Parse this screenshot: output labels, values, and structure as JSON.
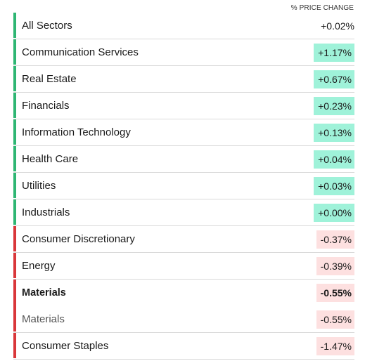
{
  "header": {
    "column_label": "% PRICE CHANGE"
  },
  "colors": {
    "positive_bar": "#2eb673",
    "negative_bar": "#d9373a",
    "positive_fill": "#9ff2d9",
    "negative_fill": "#fde0e0"
  },
  "sectors": [
    {
      "name": "All Sectors",
      "change": "+0.02%",
      "direction": "positive",
      "highlight": false,
      "bold": false,
      "muted": false
    },
    {
      "name": "Communication Services",
      "change": "+1.17%",
      "direction": "positive",
      "highlight": true,
      "bold": false,
      "muted": false
    },
    {
      "name": "Real Estate",
      "change": "+0.67%",
      "direction": "positive",
      "highlight": true,
      "bold": false,
      "muted": false
    },
    {
      "name": "Financials",
      "change": "+0.23%",
      "direction": "positive",
      "highlight": true,
      "bold": false,
      "muted": false
    },
    {
      "name": "Information Technology",
      "change": "+0.13%",
      "direction": "positive",
      "highlight": true,
      "bold": false,
      "muted": false
    },
    {
      "name": "Health Care",
      "change": "+0.04%",
      "direction": "positive",
      "highlight": true,
      "bold": false,
      "muted": false
    },
    {
      "name": "Utilities",
      "change": "+0.03%",
      "direction": "positive",
      "highlight": true,
      "bold": false,
      "muted": false
    },
    {
      "name": "Industrials",
      "change": "+0.00%",
      "direction": "positive",
      "highlight": true,
      "bold": false,
      "muted": false
    },
    {
      "name": "Consumer Discretionary",
      "change": "-0.37%",
      "direction": "negative",
      "highlight": true,
      "bold": false,
      "muted": false
    },
    {
      "name": "Energy",
      "change": "-0.39%",
      "direction": "negative",
      "highlight": true,
      "bold": false,
      "muted": false
    },
    {
      "name": "Materials",
      "change": "-0.55%",
      "direction": "negative",
      "highlight": true,
      "bold": true,
      "muted": false
    },
    {
      "name": "Materials",
      "change": "-0.55%",
      "direction": "negative",
      "highlight": true,
      "bold": false,
      "muted": true
    },
    {
      "name": "Consumer Staples",
      "change": "-1.47%",
      "direction": "negative",
      "highlight": true,
      "bold": false,
      "muted": false
    }
  ]
}
